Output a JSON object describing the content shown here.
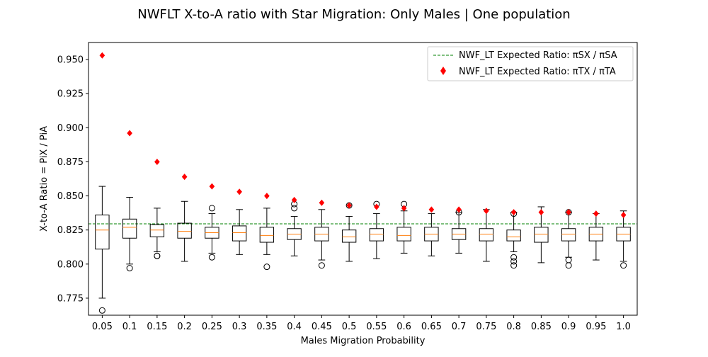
{
  "chart_data": {
    "type": "box",
    "title": "NWFLT X-to-A ratio with Star Migration: Only Males | One population",
    "xlabel": "Males Migration Probability",
    "ylabel": "X-to-A Ratio = PiX / PiA",
    "ylim": [
      0.7625,
      0.9625
    ],
    "yticks": [
      "0.775",
      "0.800",
      "0.825",
      "0.850",
      "0.875",
      "0.900",
      "0.925",
      "0.950"
    ],
    "grid": false,
    "legend_position": "top-right",
    "categories": [
      "0.05",
      "0.1",
      "0.15",
      "0.2",
      "0.25",
      "0.3",
      "0.35",
      "0.4",
      "0.45",
      "0.5",
      "0.55",
      "0.6",
      "0.65",
      "0.7",
      "0.75",
      "0.8",
      "0.85",
      "0.9",
      "0.95",
      "1.0"
    ],
    "boxes": [
      {
        "whislo": 0.775,
        "q1": 0.811,
        "med": 0.825,
        "q3": 0.836,
        "whishi": 0.857,
        "fliers": [
          0.766
        ]
      },
      {
        "whislo": 0.8,
        "q1": 0.819,
        "med": 0.827,
        "q3": 0.833,
        "whishi": 0.849,
        "fliers": [
          0.797
        ]
      },
      {
        "whislo": 0.809,
        "q1": 0.82,
        "med": 0.825,
        "q3": 0.829,
        "whishi": 0.841,
        "fliers": [
          0.806,
          0.806
        ]
      },
      {
        "whislo": 0.802,
        "q1": 0.819,
        "med": 0.824,
        "q3": 0.83,
        "whishi": 0.846,
        "fliers": []
      },
      {
        "whislo": 0.808,
        "q1": 0.819,
        "med": 0.823,
        "q3": 0.827,
        "whishi": 0.837,
        "fliers": [
          0.841,
          0.805
        ]
      },
      {
        "whislo": 0.807,
        "q1": 0.817,
        "med": 0.823,
        "q3": 0.828,
        "whishi": 0.84,
        "fliers": []
      },
      {
        "whislo": 0.807,
        "q1": 0.816,
        "med": 0.821,
        "q3": 0.827,
        "whishi": 0.841,
        "fliers": [
          0.798
        ]
      },
      {
        "whislo": 0.806,
        "q1": 0.818,
        "med": 0.822,
        "q3": 0.826,
        "whishi": 0.835,
        "fliers": [
          0.844,
          0.841
        ]
      },
      {
        "whislo": 0.803,
        "q1": 0.817,
        "med": 0.822,
        "q3": 0.827,
        "whishi": 0.84,
        "fliers": [
          0.799
        ]
      },
      {
        "whislo": 0.802,
        "q1": 0.816,
        "med": 0.82,
        "q3": 0.825,
        "whishi": 0.835,
        "fliers": [
          0.843
        ]
      },
      {
        "whislo": 0.804,
        "q1": 0.817,
        "med": 0.822,
        "q3": 0.826,
        "whishi": 0.837,
        "fliers": [
          0.844
        ]
      },
      {
        "whislo": 0.808,
        "q1": 0.817,
        "med": 0.821,
        "q3": 0.827,
        "whishi": 0.839,
        "fliers": [
          0.844
        ]
      },
      {
        "whislo": 0.806,
        "q1": 0.817,
        "med": 0.822,
        "q3": 0.827,
        "whishi": 0.837,
        "fliers": []
      },
      {
        "whislo": 0.808,
        "q1": 0.818,
        "med": 0.822,
        "q3": 0.826,
        "whishi": 0.838,
        "fliers": [
          0.838
        ]
      },
      {
        "whislo": 0.802,
        "q1": 0.817,
        "med": 0.822,
        "q3": 0.826,
        "whishi": 0.84,
        "fliers": []
      },
      {
        "whislo": 0.809,
        "q1": 0.817,
        "med": 0.82,
        "q3": 0.825,
        "whishi": 0.838,
        "fliers": [
          0.837,
          0.805,
          0.802,
          0.799
        ]
      },
      {
        "whislo": 0.801,
        "q1": 0.816,
        "med": 0.822,
        "q3": 0.827,
        "whishi": 0.842,
        "fliers": []
      },
      {
        "whislo": 0.805,
        "q1": 0.817,
        "med": 0.822,
        "q3": 0.826,
        "whishi": 0.838,
        "fliers": [
          0.838,
          0.803,
          0.799
        ]
      },
      {
        "whislo": 0.803,
        "q1": 0.817,
        "med": 0.822,
        "q3": 0.827,
        "whishi": 0.837,
        "fliers": []
      },
      {
        "whislo": 0.802,
        "q1": 0.817,
        "med": 0.822,
        "q3": 0.827,
        "whishi": 0.839,
        "fliers": [
          0.799
        ]
      }
    ],
    "series": [
      {
        "name": "NWF_LT Expected Ratio: πSX / πSA",
        "type": "hline",
        "value": 0.8295,
        "color": "#008000"
      },
      {
        "name": "NWF_LT Expected Ratio: πTX / πTA",
        "type": "scatter",
        "marker": "diamond",
        "color": "#ff0000",
        "values": [
          0.953,
          0.896,
          0.875,
          0.864,
          0.857,
          0.853,
          0.85,
          0.847,
          0.845,
          0.843,
          0.842,
          0.841,
          0.84,
          0.84,
          0.839,
          0.838,
          0.838,
          0.838,
          0.837,
          0.836
        ]
      }
    ],
    "box_color": "#000000",
    "median_color": "#ff7f0e"
  }
}
